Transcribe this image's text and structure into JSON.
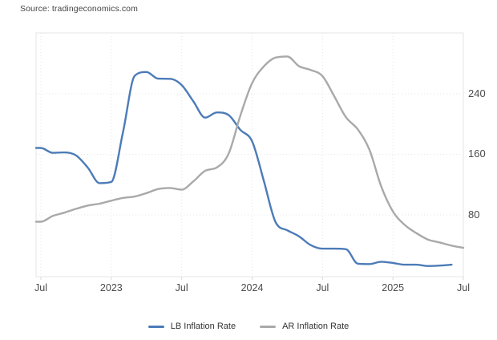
{
  "source_label": "Source: tradingeconomics.com",
  "colors": {
    "lb_line": "#4c7bb8",
    "ar_line": "#a9a9a9",
    "grid": "#e5e5e5",
    "plot_border": "#e6e6e6",
    "axis_text": "#4a4a4a"
  },
  "chart_data": {
    "type": "line",
    "title": "",
    "xlabel": "",
    "ylabel": "",
    "y_axis_side": "right",
    "grid": true,
    "legend_position": "bottom",
    "ylim": [
      0,
      320
    ],
    "y_ticks": [
      80,
      160,
      240
    ],
    "x_tick_labels": [
      "Jul",
      "2023",
      "Jul",
      "2024",
      "Jul",
      "2025",
      "Jul"
    ],
    "x_tick_month_indices": [
      0,
      6,
      12,
      18,
      24,
      30,
      36
    ],
    "months": [
      "Jul 2022",
      "Aug 2022",
      "Sep 2022",
      "Oct 2022",
      "Nov 2022",
      "Dec 2022",
      "Jan 2023",
      "Feb 2023",
      "Mar 2023",
      "Apr 2023",
      "May 2023",
      "Jun 2023",
      "Jul 2023",
      "Aug 2023",
      "Sep 2023",
      "Oct 2023",
      "Nov 2023",
      "Dec 2023",
      "Jan 2024",
      "Feb 2024",
      "Mar 2024",
      "Apr 2024",
      "May 2024",
      "Jun 2024",
      "Jul 2024",
      "Aug 2024",
      "Sep 2024",
      "Oct 2024",
      "Nov 2024",
      "Dec 2024",
      "Jan 2025",
      "Feb 2025",
      "Mar 2025",
      "Apr 2025",
      "May 2025",
      "Jun 2025",
      "Jul 2025"
    ],
    "series": [
      {
        "name": "LB Inflation Rate",
        "color": "#4c7bb8",
        "values": [
          168.5,
          162,
          162.5,
          158.5,
          142.4,
          122,
          123.5,
          189.7,
          263.8,
          268.8,
          260,
          259.8,
          251.5,
          229.9,
          208.5,
          215.4,
          211.9,
          192.3,
          177.3,
          125,
          70.4,
          59.7,
          51.6,
          40,
          35.4,
          35.4,
          34.7,
          15.6,
          15,
          18.1,
          16.5,
          14.2,
          14.2,
          12.5,
          13,
          14.2,
          null
        ]
      },
      {
        "name": "AR Inflation Rate",
        "color": "#a9a9a9",
        "values": [
          71,
          78.5,
          83,
          88,
          92.4,
          94.8,
          98.8,
          102.5,
          104.3,
          108.8,
          114.2,
          115.6,
          113.4,
          124.4,
          138.3,
          142.7,
          160.9,
          211.4,
          254.2,
          276.2,
          287.9,
          289.4,
          276.4,
          271.5,
          263.4,
          236.7,
          209,
          193,
          166,
          117.8,
          84.5,
          66.9,
          55.9,
          47.3,
          43.5,
          39.4,
          36.6
        ]
      }
    ]
  }
}
